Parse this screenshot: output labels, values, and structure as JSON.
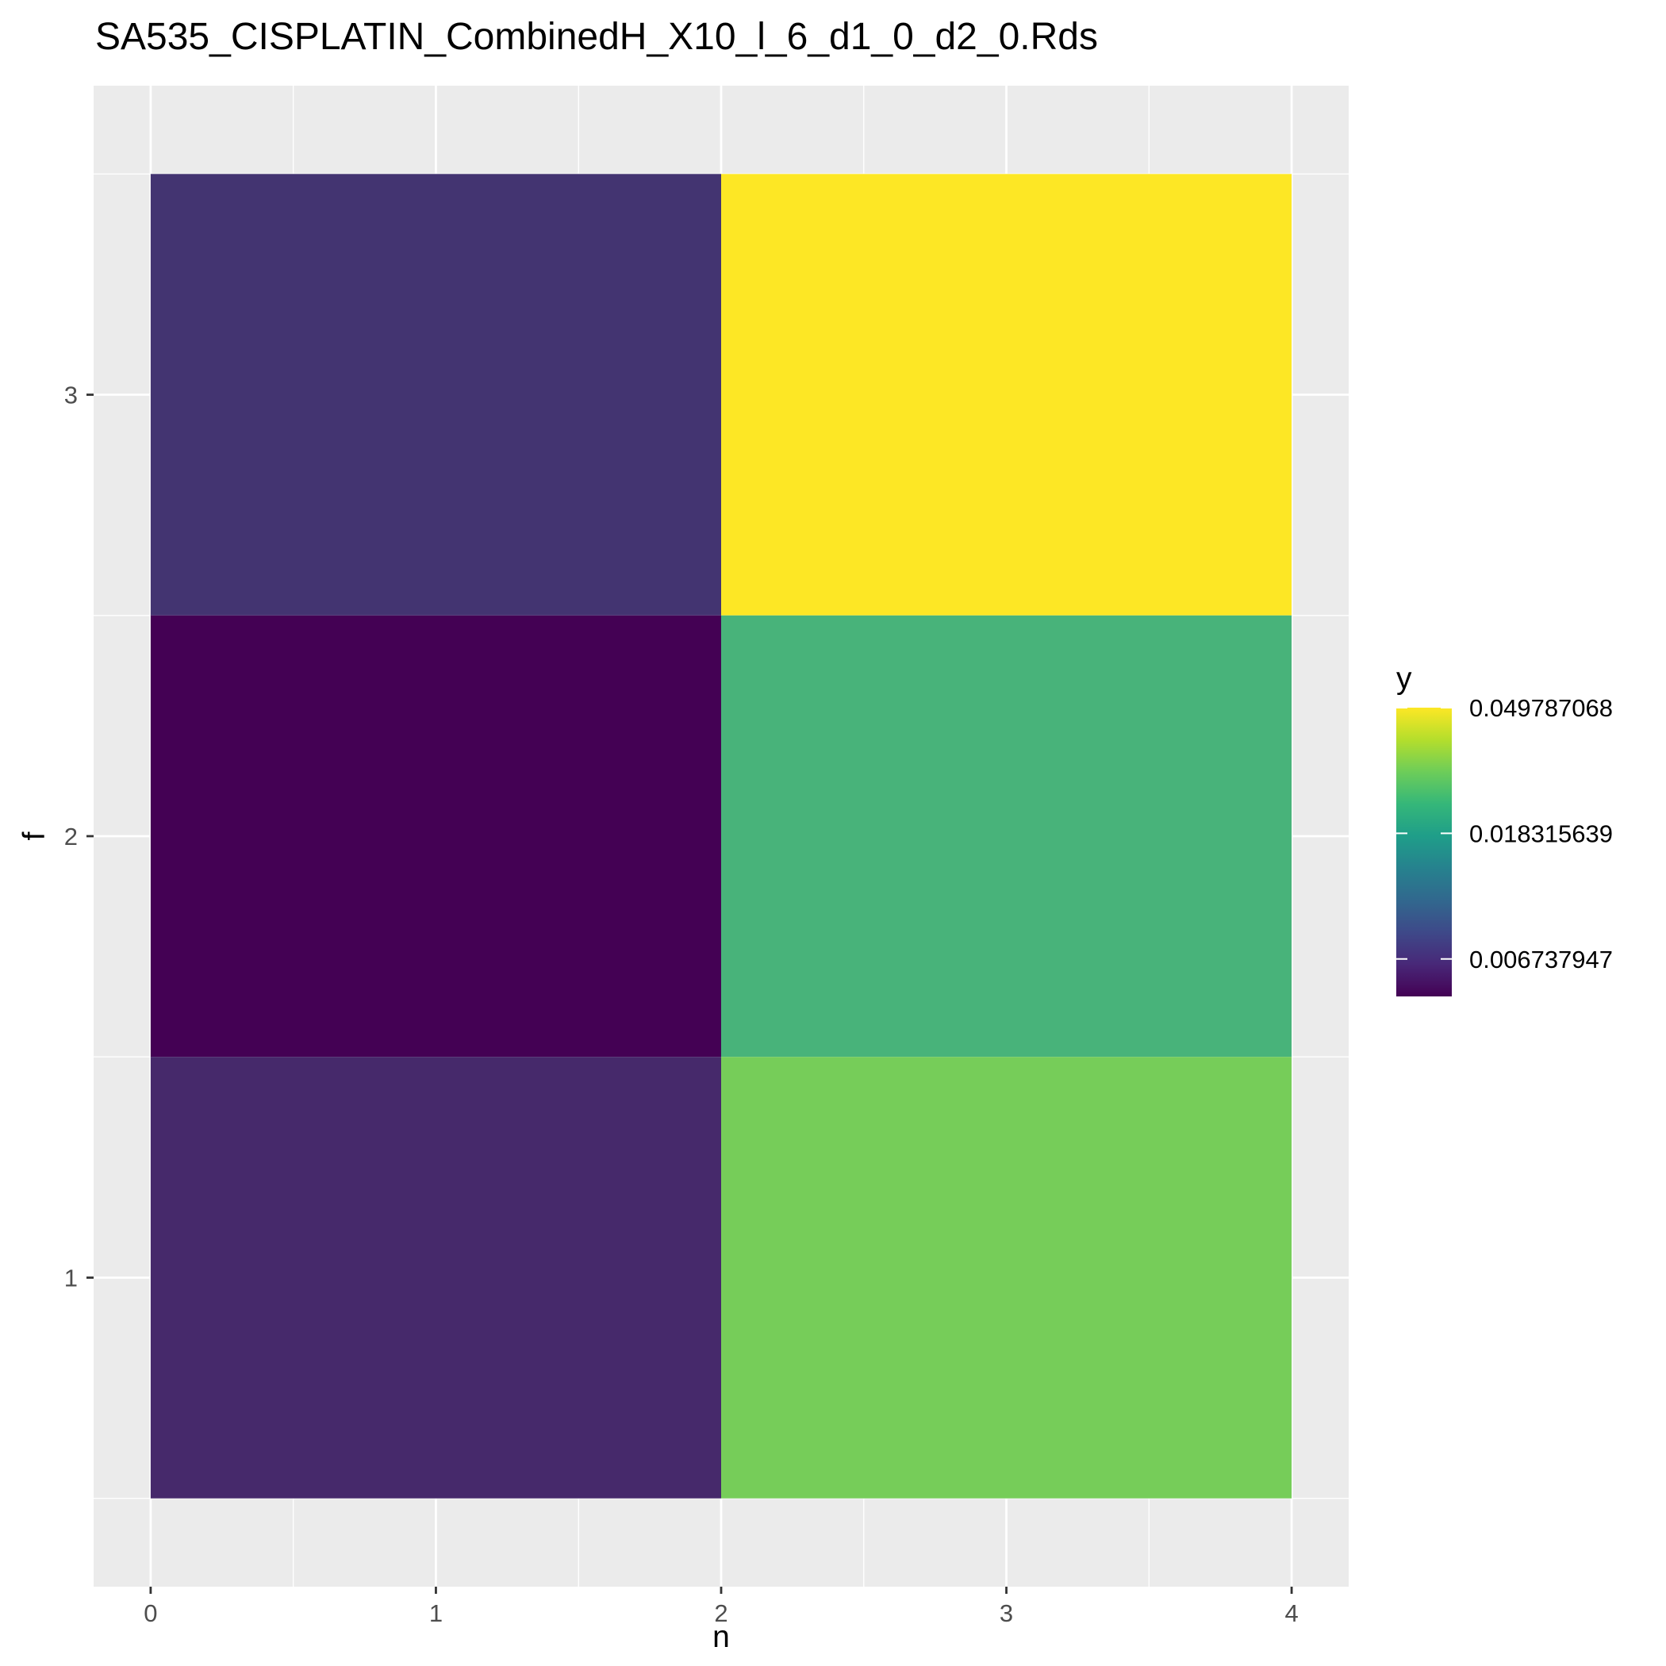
{
  "chart_data": {
    "type": "heatmap",
    "title": "SA535_CISPLATIN_CombinedH_X10_l_6_d1_0_d2_0.Rds",
    "xlabel": "n",
    "ylabel": "f",
    "x_ticks": [
      "0",
      "1",
      "2",
      "3",
      "4"
    ],
    "y_ticks": [
      "1",
      "2",
      "3"
    ],
    "xlim": [
      -0.2,
      4.2
    ],
    "ylim": [
      0.3,
      3.7
    ],
    "grid": true,
    "cells": [
      {
        "x": [
          0,
          2
        ],
        "f": 3,
        "y": 0.0055,
        "color": "#433471"
      },
      {
        "x": [
          2,
          4
        ],
        "f": 3,
        "y": 0.0498,
        "color": "#FDE725"
      },
      {
        "x": [
          0,
          2
        ],
        "f": 2,
        "y": 0.005,
        "color": "#440154"
      },
      {
        "x": [
          2,
          4
        ],
        "f": 2,
        "y": 0.0183,
        "color": "#48B37A"
      },
      {
        "x": [
          0,
          2
        ],
        "f": 1,
        "y": 0.0055,
        "color": "#46296B"
      },
      {
        "x": [
          2,
          4
        ],
        "f": 1,
        "y": 0.0245,
        "color": "#76CD59"
      }
    ],
    "legend": {
      "title": "y",
      "placement": "right",
      "scale": "log",
      "range": [
        0.005,
        0.0498
      ],
      "breaks": [
        {
          "value": 0.049787068,
          "label": "0.049787068"
        },
        {
          "value": 0.018315639,
          "label": "0.018315639"
        },
        {
          "value": 0.006737947,
          "label": "0.006737947"
        }
      ],
      "colors": [
        "#440154",
        "#482878",
        "#3E4989",
        "#31688E",
        "#26828E",
        "#1F9E89",
        "#35B779",
        "#6DCD59",
        "#B4DE2C",
        "#FDE725"
      ]
    }
  }
}
